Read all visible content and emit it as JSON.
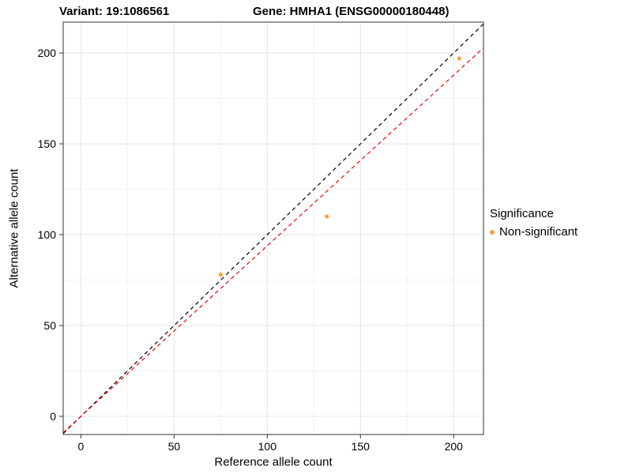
{
  "titles": {
    "variant": "Variant: 19:1086561",
    "gene": "Gene: HMHA1 (ENSG00000180448)"
  },
  "chart_data": {
    "type": "scatter",
    "xlabel": "Reference allele count",
    "ylabel": "Alternative allele count",
    "xlim": [
      -9.5,
      216
    ],
    "ylim": [
      -10,
      217
    ],
    "xticks": [
      0,
      50,
      100,
      150,
      200
    ],
    "yticks": [
      0,
      50,
      100,
      150,
      200
    ],
    "minor_step": 25,
    "grid": true,
    "points": [
      {
        "x": 75,
        "y": 78,
        "series": "Non-significant"
      },
      {
        "x": 132,
        "y": 110,
        "series": "Non-significant"
      },
      {
        "x": 203,
        "y": 197,
        "series": "Non-significant"
      }
    ],
    "point_color": "#F9A23C",
    "point_radius": 2.6,
    "lines": [
      {
        "name": "identity-line",
        "slope": 1,
        "intercept": 0,
        "color": "#000000",
        "dash": "5,4"
      },
      {
        "name": "fitted-line",
        "slope": 0.939,
        "intercept": 0,
        "color": "#FF0000",
        "dash": "5,4"
      }
    ],
    "legend": {
      "title": "Significance",
      "items": [
        {
          "label": "Non-significant",
          "color": "#F9A23C"
        }
      ],
      "position": "right"
    },
    "style": {
      "panel_bg": "#FFFFFF",
      "panel_border": "#333333",
      "grid_major": "#E5E5E5",
      "grid_minor": "#F2F2F2",
      "tick_color": "#333333",
      "tick_label_size": 14
    }
  }
}
